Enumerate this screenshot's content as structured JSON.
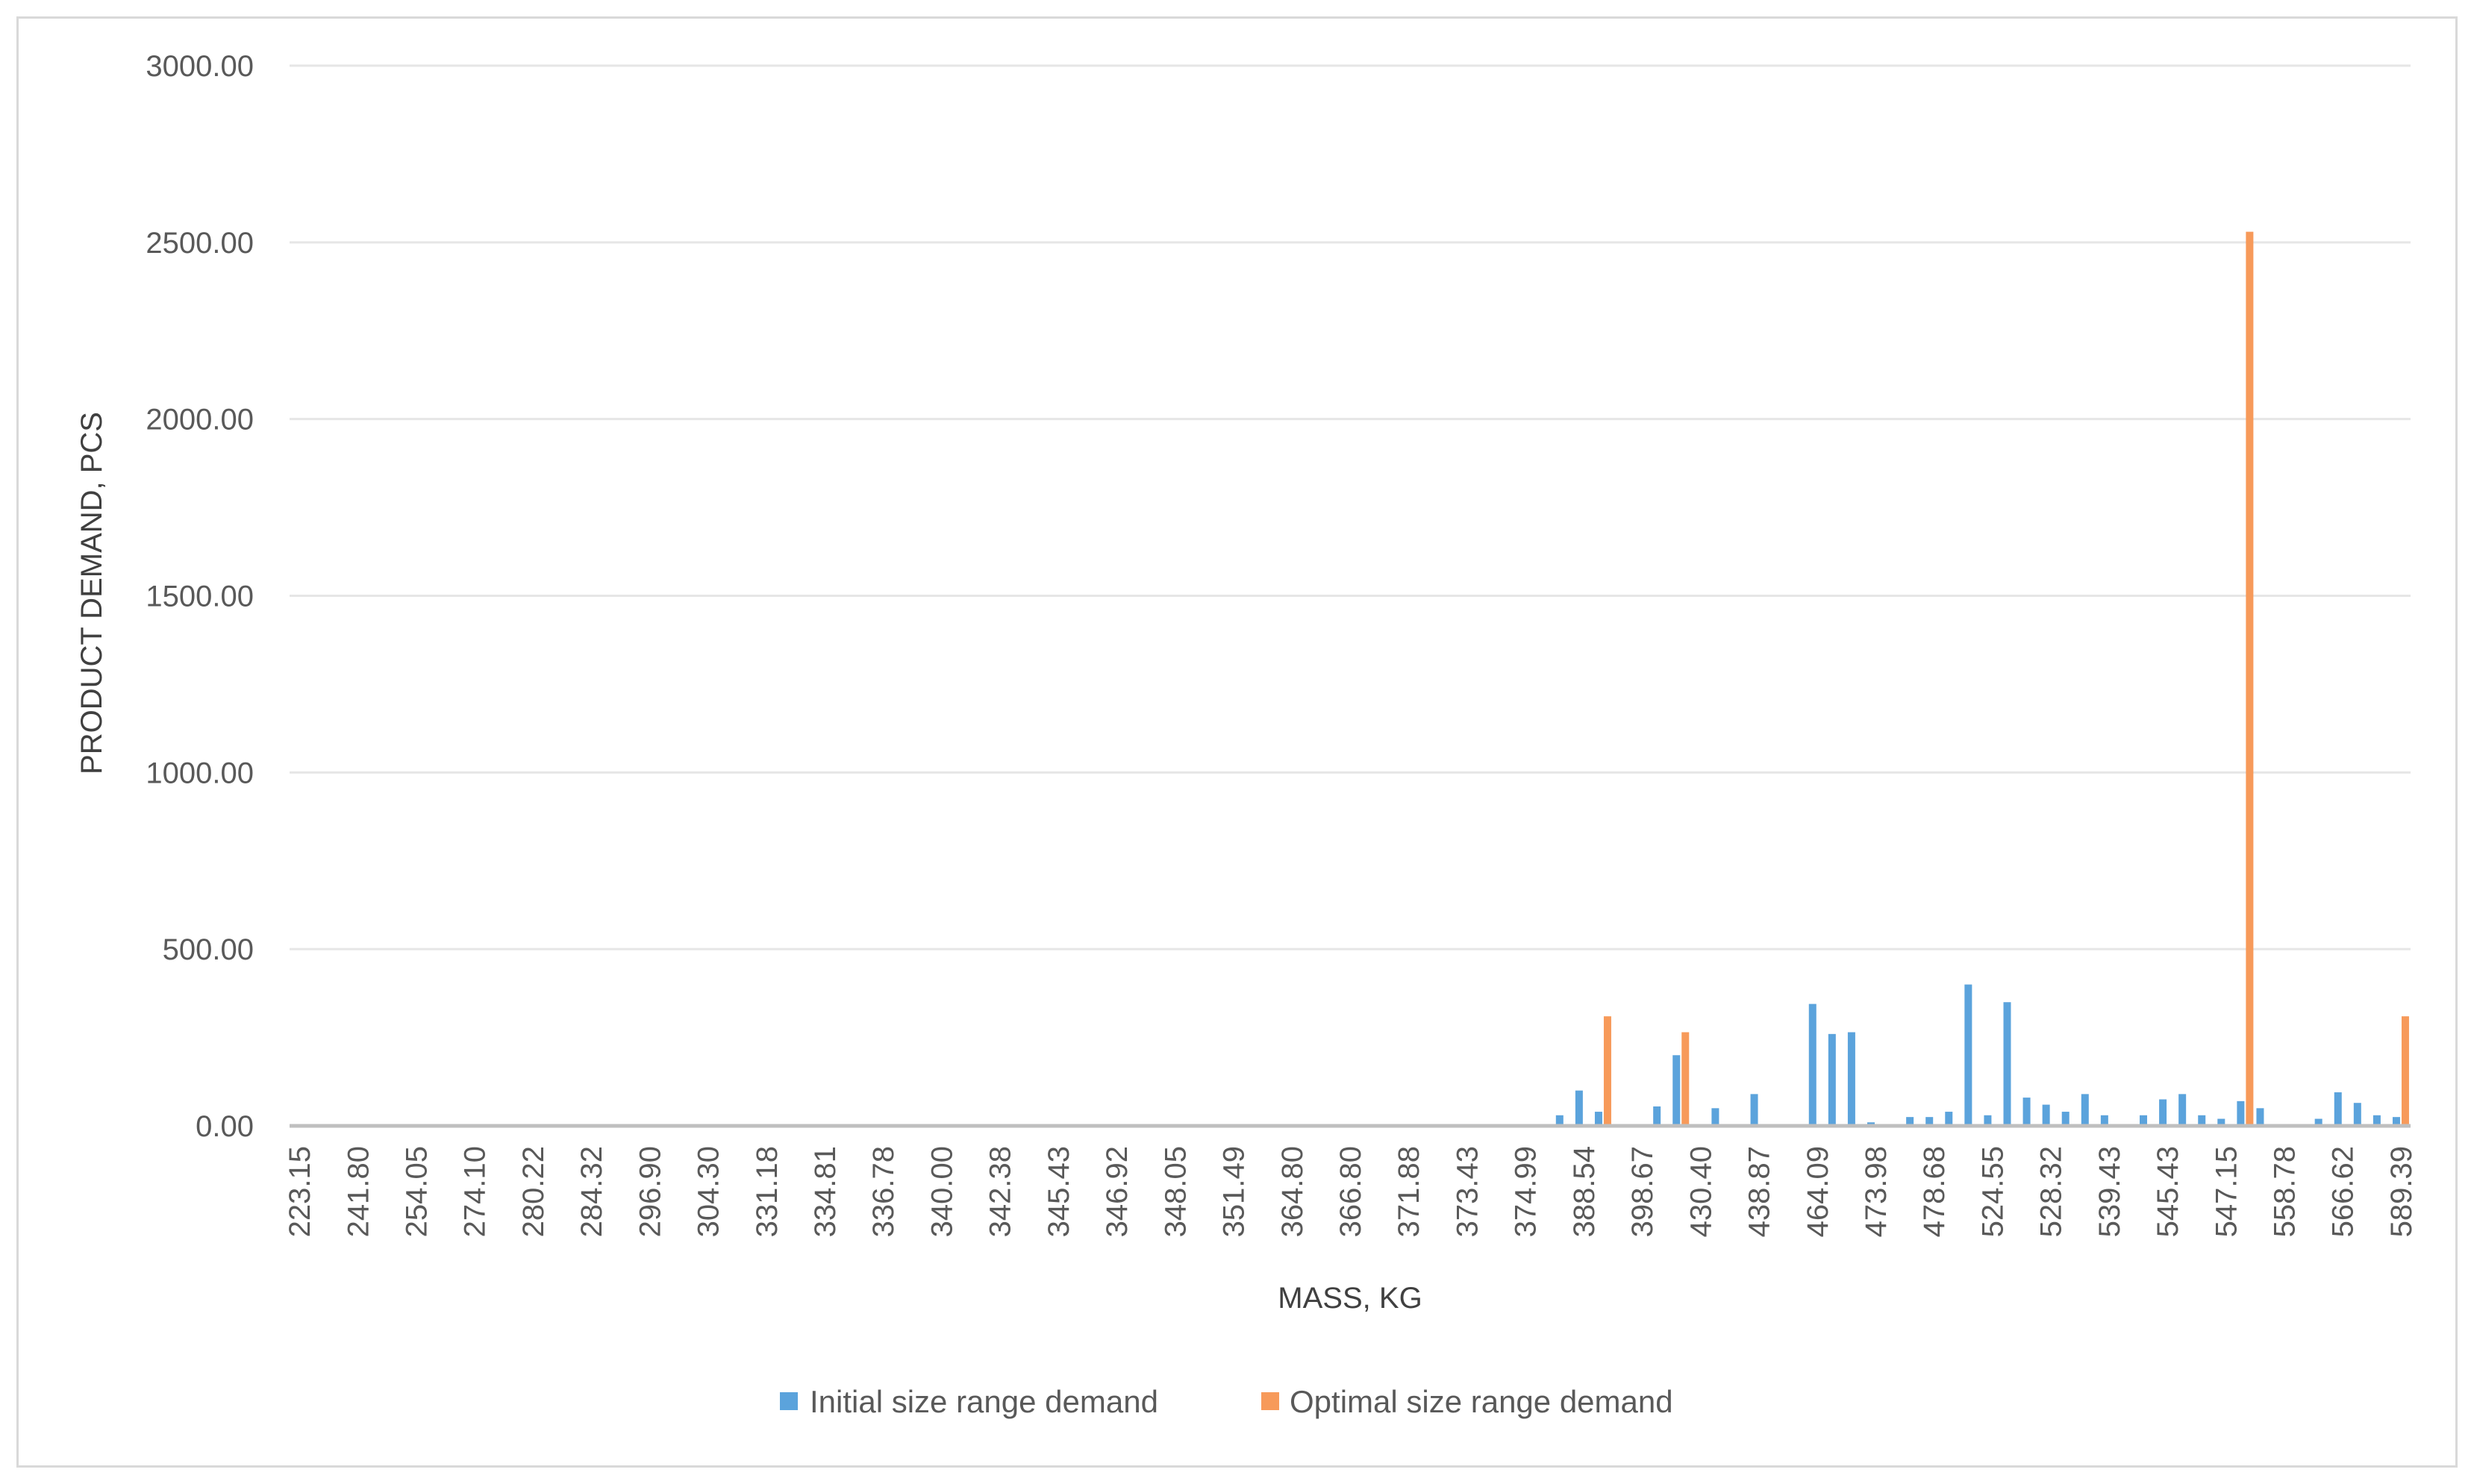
{
  "chart_data": {
    "type": "bar",
    "title": "",
    "xlabel": "MASS, KG",
    "ylabel": "PRODUCT DEMAND, PCS",
    "ylim": [
      0,
      3000
    ],
    "y_ticks": [
      "0.00",
      "500.00",
      "1000.00",
      "1500.00",
      "2000.00",
      "2500.00",
      "3000.00"
    ],
    "grid": "horizontal",
    "legend_position": "bottom",
    "category_count": 109,
    "tick_every": 3,
    "x_tick_labels": [
      "223.15",
      "241.80",
      "254.05",
      "274.10",
      "280.22",
      "284.32",
      "296.90",
      "304.30",
      "331.18",
      "334.81",
      "336.78",
      "340.00",
      "342.38",
      "345.43",
      "346.92",
      "348.05",
      "351.49",
      "364.80",
      "366.80",
      "371.88",
      "373.43",
      "374.99",
      "388.54",
      "398.67",
      "430.40",
      "438.87",
      "464.09",
      "473.98",
      "478.68",
      "524.55",
      "528.32",
      "539.43",
      "545.43",
      "547.15",
      "558.78",
      "566.62",
      "589.39"
    ],
    "series": [
      {
        "name": "Initial size range demand",
        "color": "#5ba3dc",
        "values": [
          0,
          0,
          0,
          0,
          0,
          0,
          0,
          0,
          0,
          0,
          0,
          0,
          0,
          0,
          0,
          0,
          0,
          0,
          0,
          0,
          0,
          0,
          0,
          0,
          0,
          0,
          0,
          0,
          0,
          0,
          0,
          0,
          0,
          0,
          0,
          0,
          0,
          0,
          0,
          0,
          0,
          0,
          0,
          0,
          0,
          0,
          0,
          0,
          0,
          0,
          0,
          0,
          0,
          0,
          0,
          0,
          0,
          0,
          0,
          0,
          0,
          0,
          0,
          0,
          0,
          0,
          0,
          0,
          0,
          0,
          0,
          0,
          0,
          0,
          0,
          0,
          0,
          0,
          0,
          0,
          0,
          0,
          0,
          0,
          0,
          0,
          0,
          0,
          0,
          0,
          0,
          0,
          0,
          0,
          0,
          0,
          0,
          0,
          0,
          0,
          0,
          0,
          0,
          0,
          0,
          0,
          0,
          0,
          0
        ]
      },
      {
        "name": "Optimal size range demand",
        "color": "#f79a5a",
        "values": [
          0,
          0,
          0,
          0,
          0,
          0,
          0,
          0,
          0,
          0,
          0,
          0,
          0,
          0,
          0,
          0,
          0,
          0,
          0,
          0,
          0,
          0,
          0,
          0,
          0,
          0,
          0,
          0,
          0,
          0,
          0,
          0,
          0,
          0,
          0,
          0,
          0,
          0,
          0,
          0,
          0,
          0,
          0,
          0,
          0,
          0,
          0,
          0,
          0,
          0,
          0,
          0,
          0,
          0,
          0,
          0,
          0,
          0,
          0,
          0,
          0,
          0,
          0,
          0,
          0,
          0,
          0,
          0,
          0,
          0,
          0,
          0,
          0,
          0,
          0,
          0,
          0,
          0,
          0,
          0,
          0,
          0,
          0,
          0,
          0,
          0,
          0,
          0,
          0,
          0,
          0,
          0,
          0,
          0,
          0,
          0,
          0,
          0,
          0,
          0,
          0,
          0,
          0,
          0,
          0,
          0,
          0,
          0,
          0
        ]
      }
    ],
    "initial_points": [
      [
        65,
        30
      ],
      [
        66,
        100
      ],
      [
        67,
        40
      ],
      [
        70,
        55
      ],
      [
        71,
        200
      ],
      [
        73,
        50
      ],
      [
        75,
        90
      ],
      [
        78,
        345
      ],
      [
        79,
        260
      ],
      [
        80,
        265
      ],
      [
        81,
        10
      ],
      [
        83,
        25
      ],
      [
        84,
        25
      ],
      [
        85,
        40
      ],
      [
        86,
        400
      ],
      [
        87,
        30
      ],
      [
        88,
        350
      ],
      [
        89,
        80
      ],
      [
        90,
        60
      ],
      [
        91,
        40
      ],
      [
        92,
        90
      ],
      [
        93,
        30
      ],
      [
        95,
        30
      ],
      [
        96,
        75
      ],
      [
        97,
        90
      ],
      [
        98,
        30
      ],
      [
        99,
        20
      ],
      [
        100,
        70
      ],
      [
        101,
        50
      ],
      [
        104,
        20
      ],
      [
        105,
        95
      ],
      [
        106,
        65
      ],
      [
        107,
        30
      ],
      [
        108,
        25
      ]
    ],
    "optimal_points": [
      [
        67,
        310
      ],
      [
        71,
        265
      ],
      [
        100,
        2530
      ],
      [
        108,
        310
      ]
    ]
  }
}
